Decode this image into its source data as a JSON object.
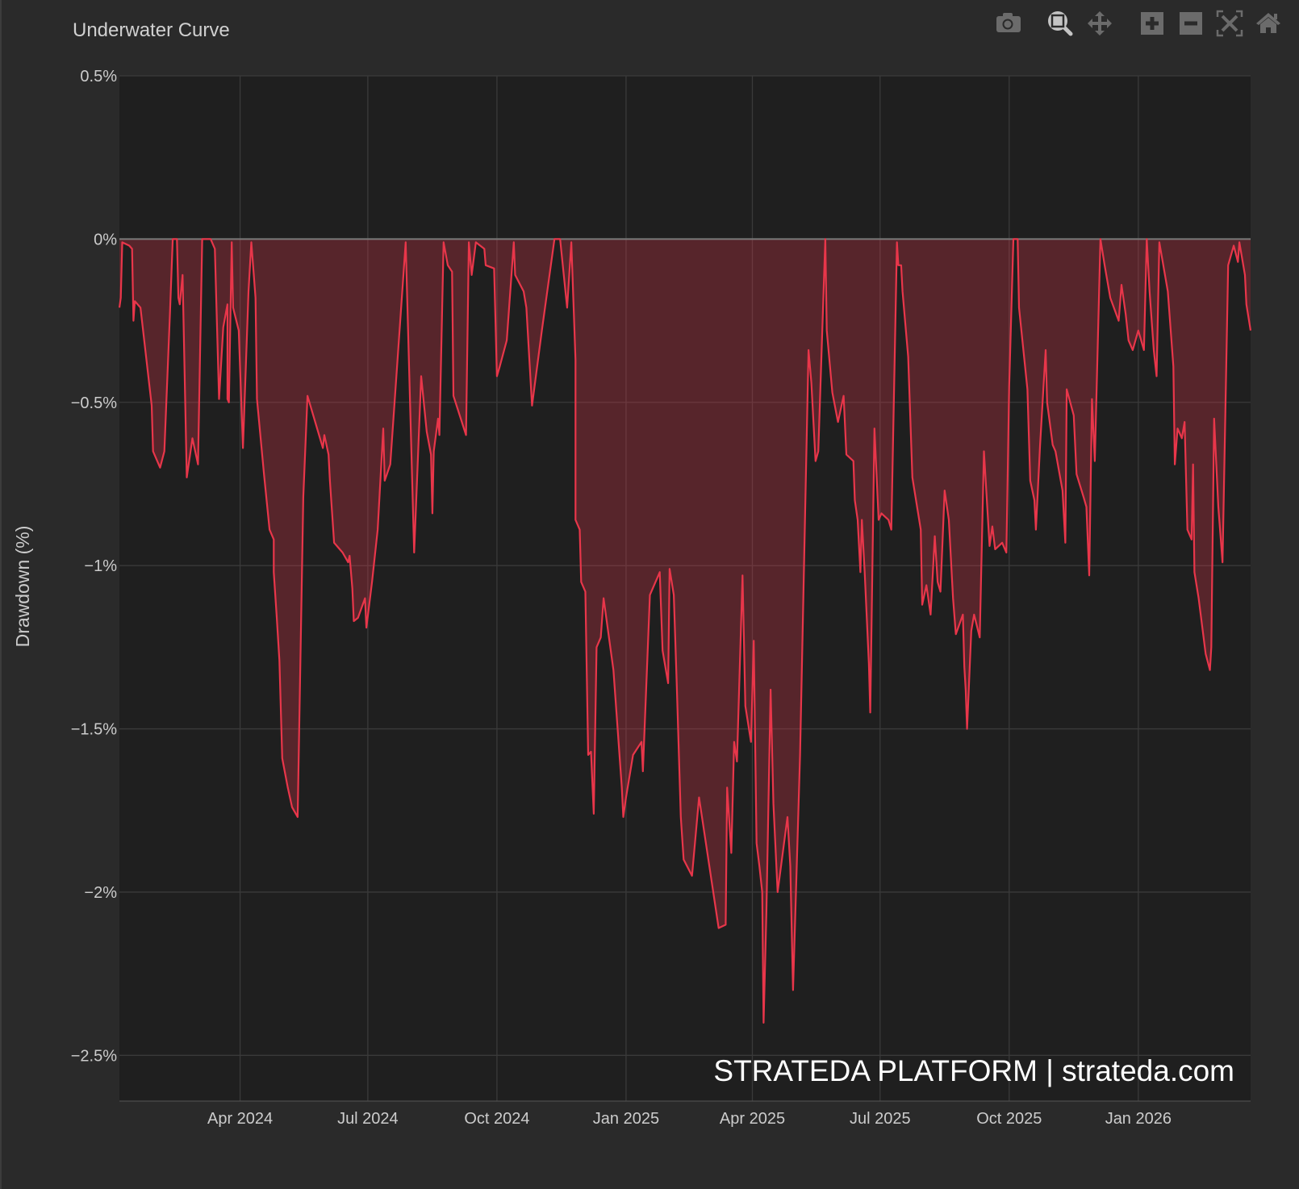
{
  "title": "Underwater Curve",
  "toolbar": [
    {
      "name": "camera-icon",
      "label": "Download plot as png"
    },
    {
      "name": "zoom-icon",
      "label": "Zoom",
      "active": true
    },
    {
      "name": "pan-icon",
      "label": "Pan"
    },
    {
      "name": "zoom-in-icon",
      "label": "Zoom in"
    },
    {
      "name": "zoom-out-icon",
      "label": "Zoom out"
    },
    {
      "name": "autoscale-icon",
      "label": "Autoscale"
    },
    {
      "name": "home-icon",
      "label": "Reset axes"
    }
  ],
  "watermark": "STRATEDA PLATFORM | strateda.com",
  "colors": {
    "line": "#e8364a",
    "fill": "rgba(232,54,74,0.28)",
    "plot_bg": "#1f1f1f",
    "paper_bg": "#2a2a2a",
    "grid": "#3a3a3a",
    "zero_line": "#7a7a7a",
    "text": "#cccccc"
  },
  "chart_data": {
    "type": "area",
    "title": "Underwater Curve",
    "xlabel": "",
    "ylabel": "Drawdown (%)",
    "x_units": "days since 2024-04-01",
    "xlim": [
      -86,
      720
    ],
    "ylim": [
      -2.64,
      0.5
    ],
    "grid": true,
    "x_ticks": [
      {
        "value": 0,
        "label": "Apr 2024"
      },
      {
        "value": 91,
        "label": "Jul 2024"
      },
      {
        "value": 183,
        "label": "Oct 2024"
      },
      {
        "value": 275,
        "label": "Jan 2025"
      },
      {
        "value": 365,
        "label": "Apr 2025"
      },
      {
        "value": 456,
        "label": "Jul 2025"
      },
      {
        "value": 548,
        "label": "Oct 2025"
      },
      {
        "value": 640,
        "label": "Jan 2026"
      }
    ],
    "y_ticks": [
      {
        "value": 0.5,
        "label": "0.5%"
      },
      {
        "value": 0,
        "label": "0%"
      },
      {
        "value": -0.5,
        "label": "−0.5%"
      },
      {
        "value": -1,
        "label": "−1%"
      },
      {
        "value": -1.5,
        "label": "−1.5%"
      },
      {
        "value": -2,
        "label": "−2%"
      },
      {
        "value": -2.5,
        "label": "−2.5%"
      }
    ],
    "series": [
      {
        "name": "Drawdown",
        "points": [
          [
            -86,
            -0.21
          ],
          [
            -85,
            -0.18
          ],
          [
            -84,
            -0.01
          ],
          [
            -79,
            -0.02
          ],
          [
            -77,
            -0.03
          ],
          [
            -76,
            -0.25
          ],
          [
            -75,
            -0.19
          ],
          [
            -71,
            -0.21
          ],
          [
            -63,
            -0.51
          ],
          [
            -62,
            -0.65
          ],
          [
            -57,
            -0.7
          ],
          [
            -54,
            -0.65
          ],
          [
            -50,
            -0.23
          ],
          [
            -48,
            0
          ],
          [
            -45,
            0
          ],
          [
            -44,
            -0.18
          ],
          [
            -43,
            -0.2
          ],
          [
            -41,
            -0.11
          ],
          [
            -38,
            -0.73
          ],
          [
            -34,
            -0.61
          ],
          [
            -30,
            -0.69
          ],
          [
            -27,
            0
          ],
          [
            -21,
            0
          ],
          [
            -18,
            -0.03
          ],
          [
            -15,
            -0.49
          ],
          [
            -12,
            -0.27
          ],
          [
            -9,
            -0.2
          ],
          [
            -9,
            -0.49
          ],
          [
            -8,
            -0.5
          ],
          [
            -6,
            -0.01
          ],
          [
            -5,
            -0.21
          ],
          [
            -1,
            -0.28
          ],
          [
            2,
            -0.64
          ],
          [
            6,
            -0.16
          ],
          [
            8,
            -0.01
          ],
          [
            11,
            -0.18
          ],
          [
            12,
            -0.49
          ],
          [
            17,
            -0.72
          ],
          [
            21,
            -0.89
          ],
          [
            24,
            -0.92
          ],
          [
            24,
            -1.02
          ],
          [
            26,
            -1.15
          ],
          [
            28,
            -1.29
          ],
          [
            30,
            -1.59
          ],
          [
            34,
            -1.68
          ],
          [
            37,
            -1.74
          ],
          [
            41,
            -1.77
          ],
          [
            45,
            -0.79
          ],
          [
            48,
            -0.48
          ],
          [
            59,
            -0.64
          ],
          [
            60,
            -0.6
          ],
          [
            63,
            -0.66
          ],
          [
            64,
            -0.74
          ],
          [
            67,
            -0.93
          ],
          [
            73,
            -0.96
          ],
          [
            77,
            -0.99
          ],
          [
            78,
            -0.97
          ],
          [
            80,
            -1.07
          ],
          [
            81,
            -1.17
          ],
          [
            84,
            -1.16
          ],
          [
            89,
            -1.1
          ],
          [
            90,
            -1.19
          ],
          [
            94,
            -1.05
          ],
          [
            98,
            -0.89
          ],
          [
            102,
            -0.58
          ],
          [
            103,
            -0.74
          ],
          [
            107,
            -0.69
          ],
          [
            118,
            -0.01
          ],
          [
            124,
            -0.96
          ],
          [
            129,
            -0.42
          ],
          [
            133,
            -0.59
          ],
          [
            136,
            -0.66
          ],
          [
            137,
            -0.84
          ],
          [
            138,
            -0.65
          ],
          [
            141,
            -0.55
          ],
          [
            142,
            -0.6
          ],
          [
            145,
            -0.01
          ],
          [
            148,
            -0.08
          ],
          [
            151,
            -0.1
          ],
          [
            152,
            -0.48
          ],
          [
            161,
            -0.6
          ],
          [
            163,
            -0.01
          ],
          [
            165,
            -0.11
          ],
          [
            168,
            -0.01
          ],
          [
            174,
            -0.03
          ],
          [
            175,
            -0.08
          ],
          [
            181,
            -0.09
          ],
          [
            183,
            -0.42
          ],
          [
            185,
            -0.39
          ],
          [
            190,
            -0.31
          ],
          [
            195,
            -0.01
          ],
          [
            196,
            -0.11
          ],
          [
            202,
            -0.16
          ],
          [
            204,
            -0.21
          ],
          [
            208,
            -0.51
          ],
          [
            215,
            -0.28
          ],
          [
            224,
            0
          ],
          [
            228,
            0
          ],
          [
            233,
            -0.21
          ],
          [
            236,
            -0.01
          ],
          [
            239,
            -0.37
          ],
          [
            239,
            -0.86
          ],
          [
            242,
            -0.89
          ],
          [
            243,
            -1.05
          ],
          [
            246,
            -1.08
          ],
          [
            248,
            -1.58
          ],
          [
            250,
            -1.57
          ],
          [
            252,
            -1.76
          ],
          [
            254,
            -1.25
          ],
          [
            257,
            -1.22
          ],
          [
            259,
            -1.1
          ],
          [
            266,
            -1.32
          ],
          [
            272,
            -1.68
          ],
          [
            273,
            -1.77
          ],
          [
            275,
            -1.71
          ],
          [
            280,
            -1.58
          ],
          [
            286,
            -1.54
          ],
          [
            287,
            -1.63
          ],
          [
            292,
            -1.09
          ],
          [
            299,
            -1.02
          ],
          [
            301,
            -1.26
          ],
          [
            305,
            -1.36
          ],
          [
            306,
            -1.01
          ],
          [
            309,
            -1.09
          ],
          [
            311,
            -1.35
          ],
          [
            314,
            -1.77
          ],
          [
            316,
            -1.9
          ],
          [
            322,
            -1.95
          ],
          [
            327,
            -1.71
          ],
          [
            341,
            -2.11
          ],
          [
            346,
            -2.1
          ],
          [
            347,
            -1.68
          ],
          [
            350,
            -1.88
          ],
          [
            352,
            -1.54
          ],
          [
            354,
            -1.6
          ],
          [
            358,
            -1.03
          ],
          [
            360,
            -1.43
          ],
          [
            364,
            -1.54
          ],
          [
            366,
            -1.23
          ],
          [
            368,
            -1.85
          ],
          [
            370,
            -1.92
          ],
          [
            372,
            -2.0
          ],
          [
            373,
            -2.4
          ],
          [
            375,
            -2.06
          ],
          [
            378,
            -1.38
          ],
          [
            380,
            -1.73
          ],
          [
            383,
            -2.0
          ],
          [
            390,
            -1.77
          ],
          [
            392,
            -1.92
          ],
          [
            394,
            -2.3
          ],
          [
            399,
            -1.58
          ],
          [
            405,
            -0.34
          ],
          [
            407,
            -0.44
          ],
          [
            410,
            -0.68
          ],
          [
            412,
            -0.65
          ],
          [
            417,
            0
          ],
          [
            418,
            -0.28
          ],
          [
            422,
            -0.47
          ],
          [
            426,
            -0.56
          ],
          [
            430,
            -0.48
          ],
          [
            432,
            -0.66
          ],
          [
            437,
            -0.68
          ],
          [
            438,
            -0.8
          ],
          [
            440,
            -0.86
          ],
          [
            442,
            -1.02
          ],
          [
            443,
            -0.86
          ],
          [
            445,
            -1.02
          ],
          [
            448,
            -1.3
          ],
          [
            449,
            -1.45
          ],
          [
            452,
            -0.58
          ],
          [
            455,
            -0.86
          ],
          [
            457,
            -0.84
          ],
          [
            462,
            -0.86
          ],
          [
            464,
            -0.89
          ],
          [
            468,
            -0.01
          ],
          [
            469,
            -0.08
          ],
          [
            471,
            -0.08
          ],
          [
            472,
            -0.16
          ],
          [
            476,
            -0.36
          ],
          [
            479,
            -0.73
          ],
          [
            485,
            -0.89
          ],
          [
            486,
            -1.12
          ],
          [
            489,
            -1.06
          ],
          [
            492,
            -1.15
          ],
          [
            495,
            -0.91
          ],
          [
            497,
            -1.05
          ],
          [
            499,
            -1.08
          ],
          [
            502,
            -0.77
          ],
          [
            505,
            -0.86
          ],
          [
            508,
            -1.1
          ],
          [
            510,
            -1.21
          ],
          [
            515,
            -1.15
          ],
          [
            516,
            -1.31
          ],
          [
            517,
            -1.38
          ],
          [
            518,
            -1.5
          ],
          [
            521,
            -1.2
          ],
          [
            523,
            -1.15
          ],
          [
            527,
            -1.22
          ],
          [
            530,
            -0.65
          ],
          [
            534,
            -0.94
          ],
          [
            536,
            -0.88
          ],
          [
            538,
            -0.95
          ],
          [
            543,
            -0.93
          ],
          [
            546,
            -0.96
          ],
          [
            548,
            -0.45
          ],
          [
            551,
            0
          ],
          [
            554,
            0
          ],
          [
            555,
            -0.21
          ],
          [
            561,
            -0.46
          ],
          [
            563,
            -0.74
          ],
          [
            566,
            -0.8
          ],
          [
            567,
            -0.89
          ],
          [
            570,
            -0.63
          ],
          [
            574,
            -0.34
          ],
          [
            575,
            -0.5
          ],
          [
            579,
            -0.63
          ],
          [
            581,
            -0.65
          ],
          [
            586,
            -0.77
          ],
          [
            588,
            -0.93
          ],
          [
            589,
            -0.46
          ],
          [
            594,
            -0.54
          ],
          [
            596,
            -0.72
          ],
          [
            601,
            -0.79
          ],
          [
            603,
            -0.82
          ],
          [
            605,
            -1.03
          ],
          [
            607,
            -0.49
          ],
          [
            609,
            -0.68
          ],
          [
            613,
            0
          ],
          [
            616,
            -0.08
          ],
          [
            620,
            -0.18
          ],
          [
            626,
            -0.25
          ],
          [
            628,
            -0.14
          ],
          [
            631,
            -0.23
          ],
          [
            633,
            -0.31
          ],
          [
            636,
            -0.34
          ],
          [
            640,
            -0.28
          ],
          [
            644,
            -0.34
          ],
          [
            646,
            0
          ],
          [
            648,
            -0.16
          ],
          [
            651,
            -0.34
          ],
          [
            653,
            -0.42
          ],
          [
            655,
            -0.01
          ],
          [
            661,
            -0.16
          ],
          [
            665,
            -0.39
          ],
          [
            666,
            -0.69
          ],
          [
            668,
            -0.58
          ],
          [
            671,
            -0.61
          ],
          [
            673,
            -0.56
          ],
          [
            675,
            -0.89
          ],
          [
            678,
            -0.92
          ],
          [
            679,
            -0.69
          ],
          [
            680,
            -1.02
          ],
          [
            683,
            -1.1
          ],
          [
            688,
            -1.27
          ],
          [
            691,
            -1.32
          ],
          [
            692,
            -1.25
          ],
          [
            694,
            -0.55
          ],
          [
            697,
            -0.82
          ],
          [
            700,
            -0.99
          ],
          [
            704,
            -0.08
          ],
          [
            708,
            -0.02
          ],
          [
            711,
            -0.07
          ],
          [
            712,
            -0.01
          ],
          [
            716,
            -0.11
          ],
          [
            717,
            -0.2
          ],
          [
            720,
            -0.28
          ]
        ]
      }
    ]
  }
}
